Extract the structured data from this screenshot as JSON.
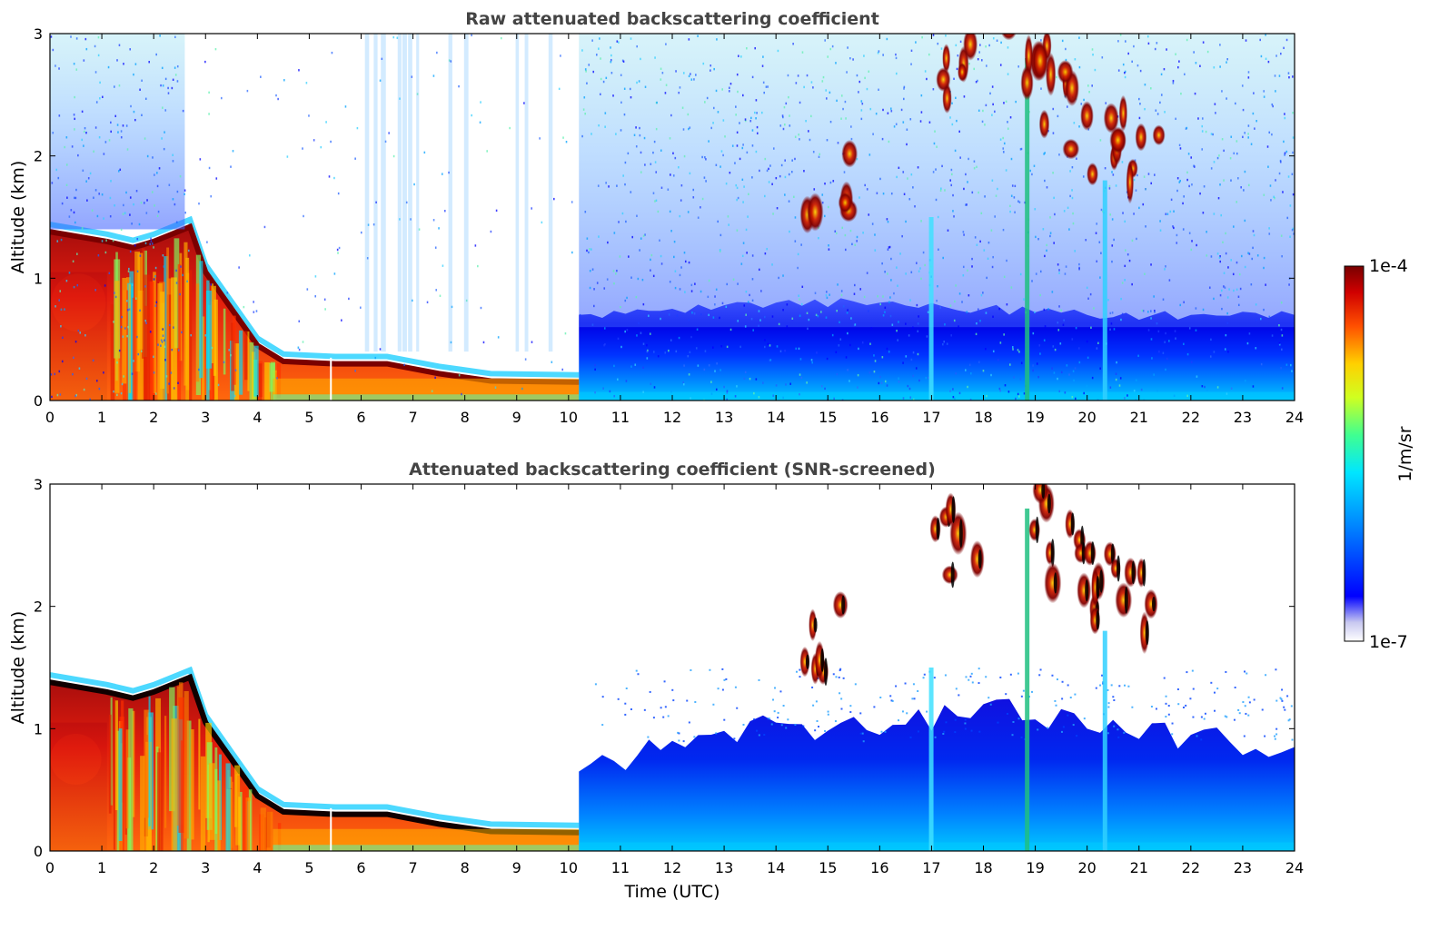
{
  "chart_data": [
    {
      "type": "heatmap",
      "title": "Raw attenuated backscattering coefficient",
      "xlabel": "",
      "ylabel": "Altitude (km)",
      "xlim": [
        0,
        24
      ],
      "ylim": [
        0,
        3
      ],
      "x_ticks": [
        "0",
        "1",
        "2",
        "3",
        "4",
        "5",
        "6",
        "7",
        "8",
        "9",
        "10",
        "11",
        "12",
        "13",
        "14",
        "15",
        "16",
        "17",
        "18",
        "19",
        "20",
        "21",
        "22",
        "23",
        "24"
      ],
      "y_ticks": [
        "0",
        "1",
        "2",
        "3"
      ],
      "grid": false,
      "colormap": "jet",
      "color_scale": "log",
      "layer_top_km": [
        [
          0,
          1.38
        ],
        [
          1.1,
          1.3
        ],
        [
          1.6,
          1.25
        ],
        [
          2.0,
          1.3
        ],
        [
          2.7,
          1.42
        ],
        [
          3.0,
          1.05
        ],
        [
          3.5,
          0.75
        ],
        [
          4.0,
          0.45
        ],
        [
          4.5,
          0.32
        ],
        [
          5.5,
          0.3
        ],
        [
          6.5,
          0.3
        ],
        [
          7.5,
          0.22
        ],
        [
          8.5,
          0.16
        ],
        [
          10.2,
          0.15
        ]
      ],
      "cloud_features": [
        {
          "time": 15.0,
          "altitude_km": 1.7
        },
        {
          "time": 17.5,
          "altitude_km": 2.6
        },
        {
          "time": 18.8,
          "altitude_km": 2.9
        },
        {
          "time": 19.5,
          "altitude_km": 2.4
        },
        {
          "time": 20.3,
          "altitude_km": 2.1
        },
        {
          "time": 21.0,
          "altitude_km": 2.0
        }
      ],
      "boundary_layer_top_km": [
        [
          10.2,
          0.7
        ],
        [
          12,
          0.75
        ],
        [
          14,
          0.8
        ],
        [
          16,
          0.8
        ],
        [
          18,
          0.75
        ],
        [
          20,
          0.7
        ],
        [
          22,
          0.7
        ],
        [
          24,
          0.7
        ]
      ]
    },
    {
      "type": "heatmap",
      "title": "Attenuated backscattering coefficient (SNR-screened)",
      "xlabel": "Time (UTC)",
      "ylabel": "Altitude (km)",
      "xlim": [
        0,
        24
      ],
      "ylim": [
        0,
        3
      ],
      "x_ticks": [
        "0",
        "1",
        "2",
        "3",
        "4",
        "5",
        "6",
        "7",
        "8",
        "9",
        "10",
        "11",
        "12",
        "13",
        "14",
        "15",
        "16",
        "17",
        "18",
        "19",
        "20",
        "21",
        "22",
        "23",
        "24"
      ],
      "y_ticks": [
        "0",
        "1",
        "2",
        "3"
      ],
      "grid": false,
      "colormap": "jet",
      "color_scale": "log",
      "screened_top_km": [
        [
          10.2,
          0.65
        ],
        [
          12,
          0.9
        ],
        [
          14,
          1.05
        ],
        [
          16,
          0.95
        ],
        [
          18,
          1.2
        ],
        [
          20,
          1.0
        ],
        [
          22,
          0.95
        ],
        [
          24,
          0.85
        ]
      ]
    }
  ],
  "colorbar": {
    "min_label": "1e-7",
    "max_label": "1e-4",
    "label": "1/m/sr",
    "colors": [
      "#ffffff",
      "#00007f",
      "#0000ff",
      "#007fff",
      "#00ffff",
      "#7fff7f",
      "#ffff00",
      "#ff7f00",
      "#ff0000",
      "#7f0000"
    ]
  }
}
